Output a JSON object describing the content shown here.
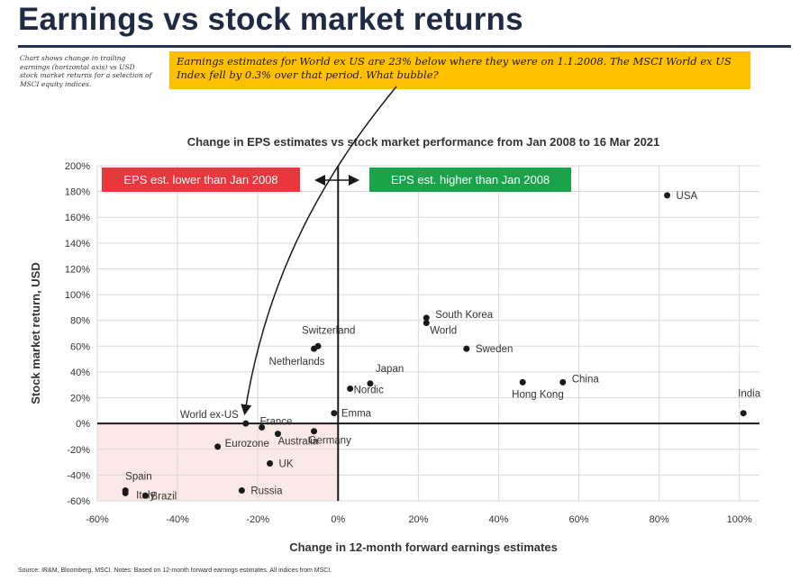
{
  "header": {
    "title": "Earnings vs stock market returns",
    "side_note": "Chart shows change in trailing earnings (horizontal axis) vs USD stock market returns for a selection of MSCI equity indices.",
    "callout": "Earnings estimates for World ex US are 23% below where they were on 1.1.2008. The MSCI World ex US Index fell by 0.3% over that period. What bubble?"
  },
  "footer": {
    "source": "Source: IR&M, Bloomberg, MSCI. Notes: Based on 12-month forward earnings estimates. All indices from MSCI."
  },
  "colors": {
    "title": "#1f2b44",
    "callout_bg": "#ffc000",
    "badge_lower": "#e8383d",
    "badge_higher": "#1aa34a",
    "shade": "#fbe9e7",
    "point": "#1a1a1a"
  },
  "chart_data": {
    "type": "scatter",
    "title": "Change in EPS estimates vs stock market performance from Jan 2008 to 16 Mar 2021",
    "xlabel": "Change in 12-month forward earnings estimates",
    "ylabel": "Stock market return, USD",
    "xlim": [
      -60,
      105
    ],
    "ylim": [
      -60,
      200
    ],
    "x_ticks": [
      -60,
      -40,
      -20,
      0,
      20,
      40,
      60,
      80,
      100
    ],
    "x_tick_labels": [
      "-60%",
      "-40%",
      "-20%",
      "0%",
      "20%",
      "40%",
      "60%",
      "80%",
      "100%"
    ],
    "y_ticks": [
      -60,
      -40,
      -20,
      0,
      20,
      40,
      60,
      80,
      100,
      120,
      140,
      160,
      180,
      200
    ],
    "y_tick_labels": [
      "-60%",
      "-40%",
      "-20%",
      "0%",
      "20%",
      "40%",
      "60%",
      "80%",
      "100%",
      "120%",
      "140%",
      "160%",
      "180%",
      "200%"
    ],
    "grid": true,
    "badges": {
      "lower": "EPS est. lower than Jan 2008",
      "higher": "EPS est. higher than Jan 2008"
    },
    "points": [
      {
        "label": "USA",
        "x": 82,
        "y": 177
      },
      {
        "label": "India",
        "x": 101,
        "y": 8
      },
      {
        "label": "South Korea",
        "x": 22,
        "y": 82
      },
      {
        "label": "World",
        "x": 22,
        "y": 78
      },
      {
        "label": "Sweden",
        "x": 32,
        "y": 58
      },
      {
        "label": "China",
        "x": 56,
        "y": 32
      },
      {
        "label": "Hong Kong",
        "x": 46,
        "y": 32
      },
      {
        "label": "Switzerland",
        "x": -5,
        "y": 60
      },
      {
        "label": "Netherlands",
        "x": -6,
        "y": 58
      },
      {
        "label": "Japan",
        "x": 8,
        "y": 31
      },
      {
        "label": "Nordic",
        "x": 3,
        "y": 27
      },
      {
        "label": "Emma",
        "x": -1,
        "y": 8
      },
      {
        "label": "World ex-US",
        "x": -23,
        "y": 0
      },
      {
        "label": "France",
        "x": -19,
        "y": -3
      },
      {
        "label": "Germany",
        "x": -6,
        "y": -6
      },
      {
        "label": "Australia",
        "x": -15,
        "y": -8
      },
      {
        "label": "Eurozone",
        "x": -30,
        "y": -18
      },
      {
        "label": "UK",
        "x": -17,
        "y": -31
      },
      {
        "label": "Russia",
        "x": -24,
        "y": -52
      },
      {
        "label": "Spain",
        "x": -53,
        "y": -52
      },
      {
        "label": "Italy",
        "x": -53,
        "y": -54
      },
      {
        "label": "Brazil",
        "x": -48,
        "y": -56
      }
    ]
  }
}
